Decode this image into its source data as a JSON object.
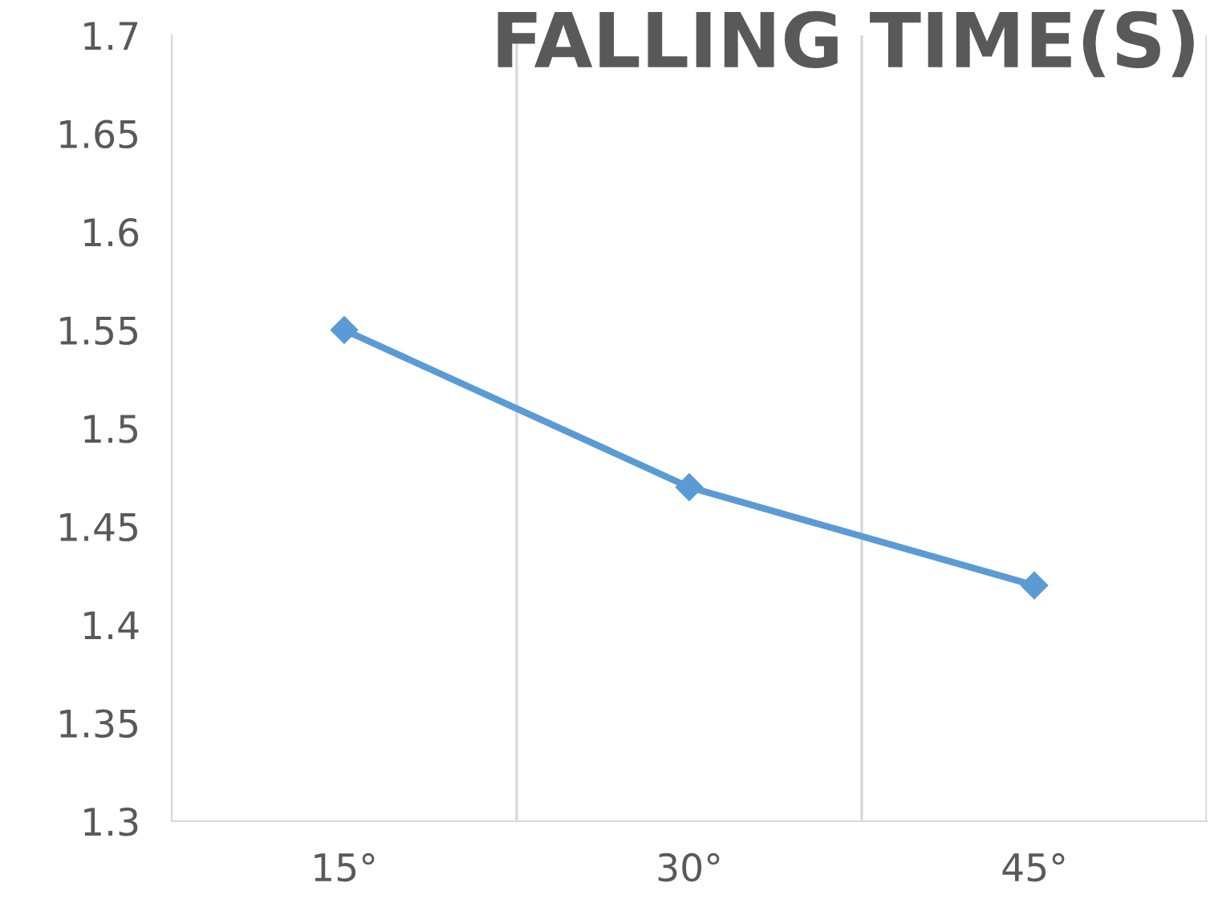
{
  "chart_data": {
    "type": "line",
    "title": "FALLING TIME(S)",
    "categories": [
      "15°",
      "30°",
      "45°"
    ],
    "series": [
      {
        "color": "#5b9bd5",
        "values": [
          1.55,
          1.47,
          1.42
        ]
      }
    ],
    "ylim": [
      1.3,
      1.7
    ],
    "yticks": [
      1.3,
      1.35,
      1.4,
      1.45,
      1.5,
      1.55,
      1.6,
      1.65,
      1.7
    ],
    "grid": "x",
    "marker": "diamond",
    "line_style": "solid",
    "legend": false
  }
}
